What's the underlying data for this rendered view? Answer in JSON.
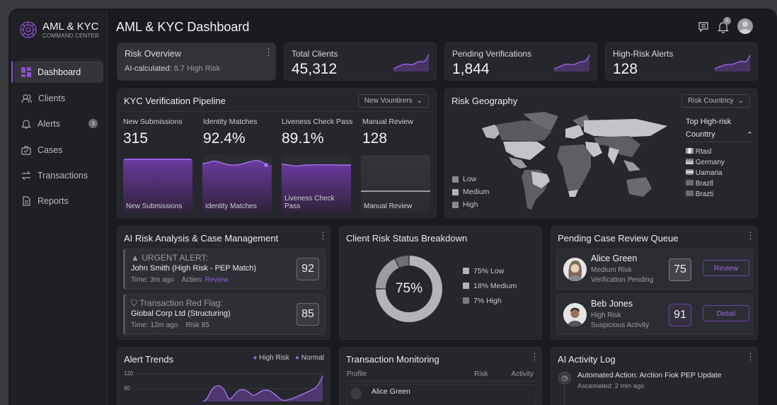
{
  "app": {
    "logo_title": "AML & KYC",
    "logo_subtitle": "COMMAND CENTER",
    "page_title": "AML & KYC Dashboard",
    "notification_count": "0"
  },
  "sidebar": {
    "items": [
      {
        "label": "Dashboard",
        "icon": "grid-icon"
      },
      {
        "label": "Clients",
        "icon": "users-icon"
      },
      {
        "label": "Alerts",
        "icon": "bell-icon",
        "badge": "3"
      },
      {
        "label": "Cases",
        "icon": "briefcase-icon"
      },
      {
        "label": "Transactions",
        "icon": "arrows-icon"
      },
      {
        "label": "Reports",
        "icon": "document-icon"
      }
    ]
  },
  "stats": {
    "risk_overview": {
      "title": "Risk Overview",
      "prefix": "AI-calculated:",
      "value": "8.7 High Risk"
    },
    "total_clients": {
      "label": "Total Clients",
      "value": "45,312"
    },
    "pending": {
      "label": "Pending Verifications",
      "value": "1,844"
    },
    "high_risk": {
      "label": "High-Risk Alerts",
      "value": "128"
    }
  },
  "kyc": {
    "title": "KYC Verification Pipeline",
    "dropdown": "New Vountirers",
    "metrics": [
      {
        "label": "New Submissions",
        "value": "315"
      },
      {
        "label": "Identity Matches",
        "value": "92.4%"
      },
      {
        "label": "Liveness Check Pass",
        "value": "89.1%"
      },
      {
        "label": "Manual Review",
        "value": "128"
      }
    ]
  },
  "geo": {
    "title": "Risk Geography",
    "dropdown": "Risk Countricy",
    "legend": [
      "Low",
      "Medium",
      "High"
    ],
    "top_title_1": "Top High-risk",
    "top_title_2": "Counttry",
    "countries": [
      "Rtasl",
      "Germany",
      "Uamaria",
      "Brazll",
      "Brazti"
    ]
  },
  "ai_risk": {
    "title": "AI Risk Analysis & Case Management",
    "alerts": [
      {
        "heading": "URGENT ALERT:",
        "subject": "John Smith (High Risk - PEP Match)",
        "time": "Time: 3m ago",
        "extra_label": "Actien:",
        "extra_link": "Review",
        "score": "92"
      },
      {
        "heading": "Transaction Red Flag:",
        "subject": "Giobal Corp Ltd (Structuring)",
        "time": "Time: 12m ago",
        "extra_label": "Risk 85",
        "score": "85"
      }
    ]
  },
  "donut": {
    "title": "Client Risk Status Breakdown",
    "center": "75%",
    "segments": [
      {
        "label": "75% Low",
        "value": 75,
        "color": "#b4b4b8"
      },
      {
        "label": "18% Medium",
        "value": 18,
        "color": "#9c9ca0"
      },
      {
        "label": "7% High",
        "value": 7,
        "color": "#6e6e73"
      }
    ]
  },
  "queue": {
    "title": "Pending Case Review Queue",
    "items": [
      {
        "name": "Alice Green",
        "risk": "Medium Risk",
        "status": "Verification Pending",
        "score": "75",
        "action": "Review"
      },
      {
        "name": "Beb Jones",
        "risk": "High Risk",
        "status": "Suspicious Activity",
        "score": "91",
        "action": "Detail"
      }
    ]
  },
  "alert_trends": {
    "title": "Alert Trends",
    "legend": [
      "High Risk",
      "Normal"
    ],
    "y_ticks": [
      "120",
      "90"
    ]
  },
  "transactions": {
    "title": "Transaction Monitoring",
    "columns": [
      "Profile",
      "Risk",
      "Activity"
    ],
    "rows": [
      {
        "name": "Alice Green"
      }
    ]
  },
  "activity": {
    "title": "AI Activity Log",
    "items": [
      {
        "text": "Automated Action: Arction Fiok PEP Update",
        "time": "Ascemated: 2 min ago"
      }
    ]
  },
  "colors": {
    "accent": "#8a4fd0",
    "card": "#26272c",
    "background": "#1a1b1f"
  }
}
